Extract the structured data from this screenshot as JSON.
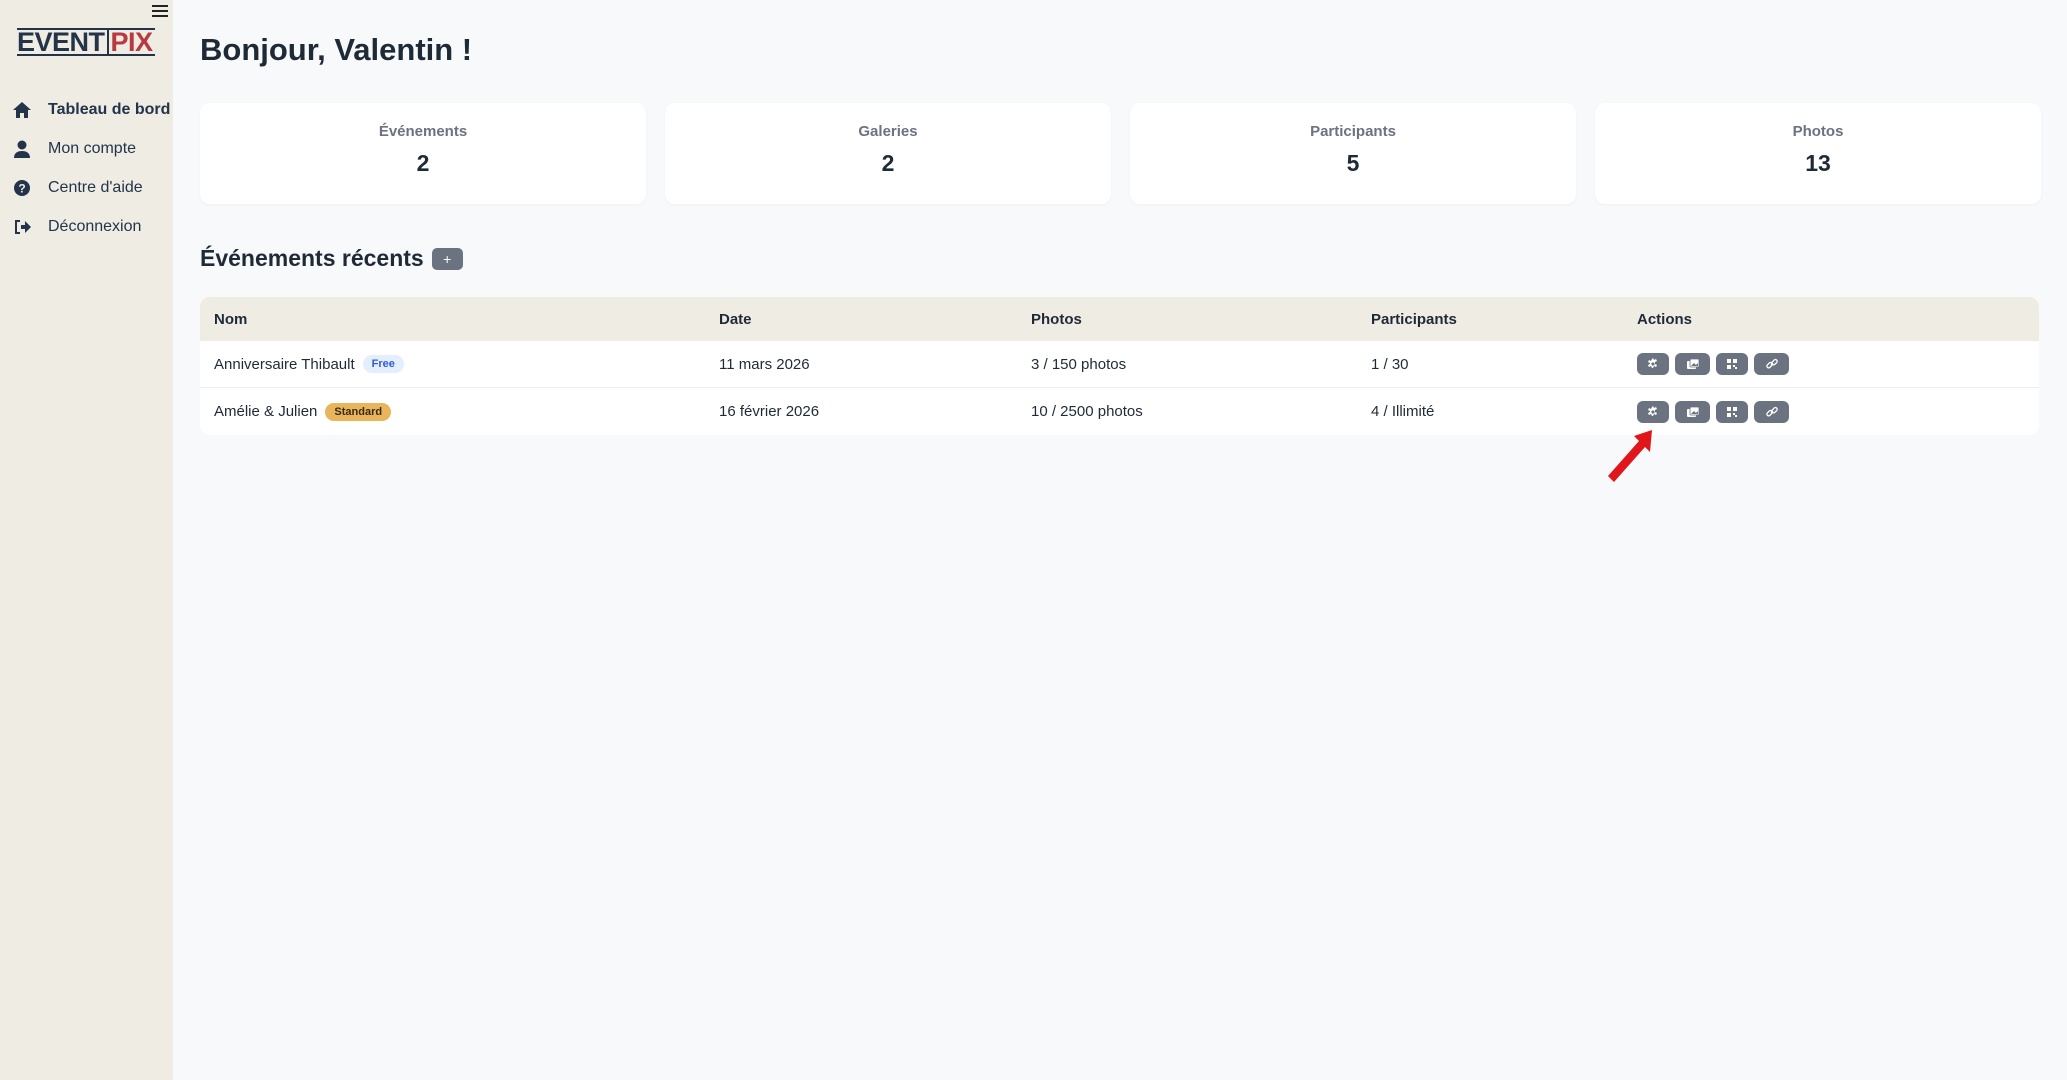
{
  "brand": {
    "logo_left": "EVENT",
    "logo_right": "PIX"
  },
  "sidebar": {
    "items": [
      {
        "label": "Tableau de bord",
        "icon": "home-icon",
        "active": true
      },
      {
        "label": "Mon compte",
        "icon": "user-icon"
      },
      {
        "label": "Centre d'aide",
        "icon": "help-icon"
      },
      {
        "label": "Déconnexion",
        "icon": "logout-icon"
      }
    ]
  },
  "header": {
    "title": "Bonjour, Valentin !"
  },
  "stats": [
    {
      "label": "Événements",
      "value": "2"
    },
    {
      "label": "Galeries",
      "value": "2"
    },
    {
      "label": "Participants",
      "value": "5"
    },
    {
      "label": "Photos",
      "value": "13"
    }
  ],
  "recent": {
    "title": "Événements récents",
    "add_label": "+"
  },
  "table": {
    "columns": [
      "Nom",
      "Date",
      "Photos",
      "Participants",
      "Actions"
    ],
    "rows": [
      {
        "name": "Anniversaire Thibault",
        "plan": "Free",
        "date": "11 mars 2026",
        "photos": "3 / 150 photos",
        "participants": "1 / 30"
      },
      {
        "name": "Amélie & Julien",
        "plan": "Standard",
        "date": "16 février 2026",
        "photos": "10 / 2500 photos",
        "participants": "4 / Illimité"
      }
    ],
    "actions": [
      "settings-icon",
      "gallery-icon",
      "qr-code-icon",
      "link-icon"
    ]
  },
  "colors": {
    "sidebar": "#efece4",
    "accent_red": "#b8393f",
    "button": "#6b7280",
    "annotation_arrow": "#e0161b"
  }
}
